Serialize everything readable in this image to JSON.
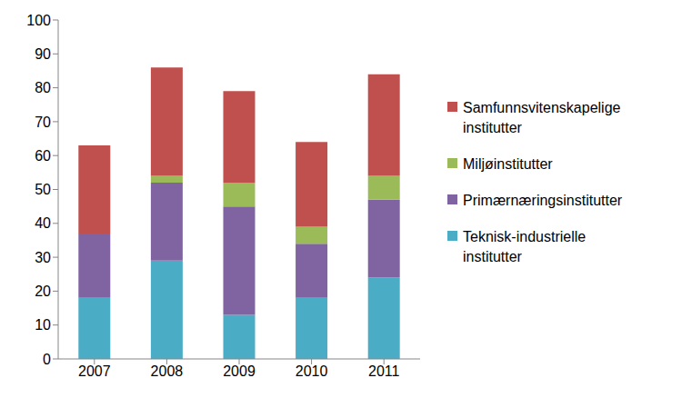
{
  "chart_data": {
    "type": "bar",
    "stacked": true,
    "categories": [
      "2007",
      "2008",
      "2009",
      "2010",
      "2011"
    ],
    "series": [
      {
        "name": "Teknisk-industrielle institutter",
        "color": "#4bacc6",
        "values": [
          18,
          29,
          13,
          18,
          24
        ]
      },
      {
        "name": "Primærnæringsinstitutter",
        "color": "#8064a2",
        "values": [
          19,
          23,
          32,
          16,
          23
        ]
      },
      {
        "name": "Miljøinstitutter",
        "color": "#9bbb59",
        "values": [
          0,
          2,
          7,
          5,
          7
        ]
      },
      {
        "name": "Samfunnsvitenskapelige institutter",
        "color": "#c0504d",
        "values": [
          26,
          32,
          27,
          25,
          30
        ]
      }
    ],
    "ylim": [
      0,
      100
    ],
    "yticks": [
      0,
      10,
      20,
      30,
      40,
      50,
      60,
      70,
      80,
      90,
      100
    ],
    "grid": false,
    "legend": "right"
  }
}
